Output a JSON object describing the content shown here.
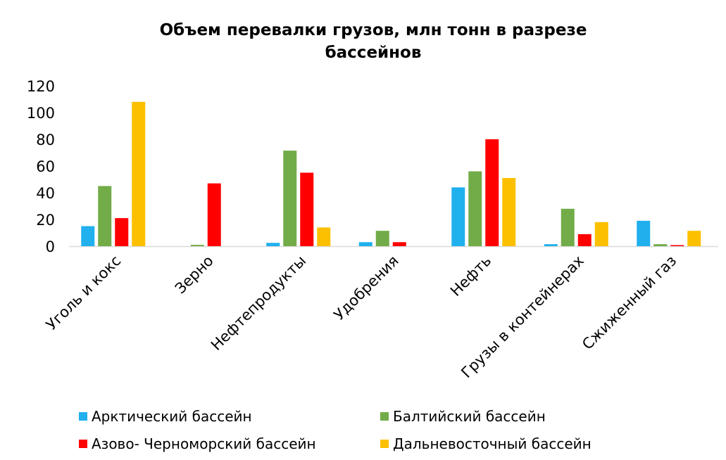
{
  "chart_data": {
    "type": "bar",
    "title": "Объем перевалки грузов, млн тонн в разрезе бассейнов",
    "title_lines": [
      "Объем перевалки грузов, млн тонн в разрезе",
      "бассейнов"
    ],
    "xlabel": "",
    "ylabel": "",
    "ylim": [
      0,
      120
    ],
    "yticks": [
      0,
      20,
      40,
      60,
      80,
      100,
      120
    ],
    "grid": false,
    "legend_position": "bottom",
    "categories": [
      "Уголь и кокс",
      "Зерно",
      "Нефтепродукты",
      "Удобрения",
      "Нефть",
      "Грузы в контейнерах",
      "Сжиженный газ"
    ],
    "series": [
      {
        "name": "Арктический бассейн",
        "color": "#20B0EE",
        "values": [
          15,
          0,
          2.5,
          3,
          44,
          1.5,
          19
        ]
      },
      {
        "name": "Балтийский бассейн",
        "color": "#72AC48",
        "values": [
          45,
          1,
          71.5,
          11.5,
          56,
          28,
          1.5
        ]
      },
      {
        "name": "Азово- Черноморский бассейн",
        "color": "#FF0000",
        "values": [
          21,
          47,
          55,
          3,
          80,
          9,
          0.8
        ]
      },
      {
        "name": "Дальневосточный бассейн",
        "color": "#FCC000",
        "values": [
          108,
          0,
          14,
          0,
          51,
          18,
          11.5
        ]
      }
    ]
  }
}
